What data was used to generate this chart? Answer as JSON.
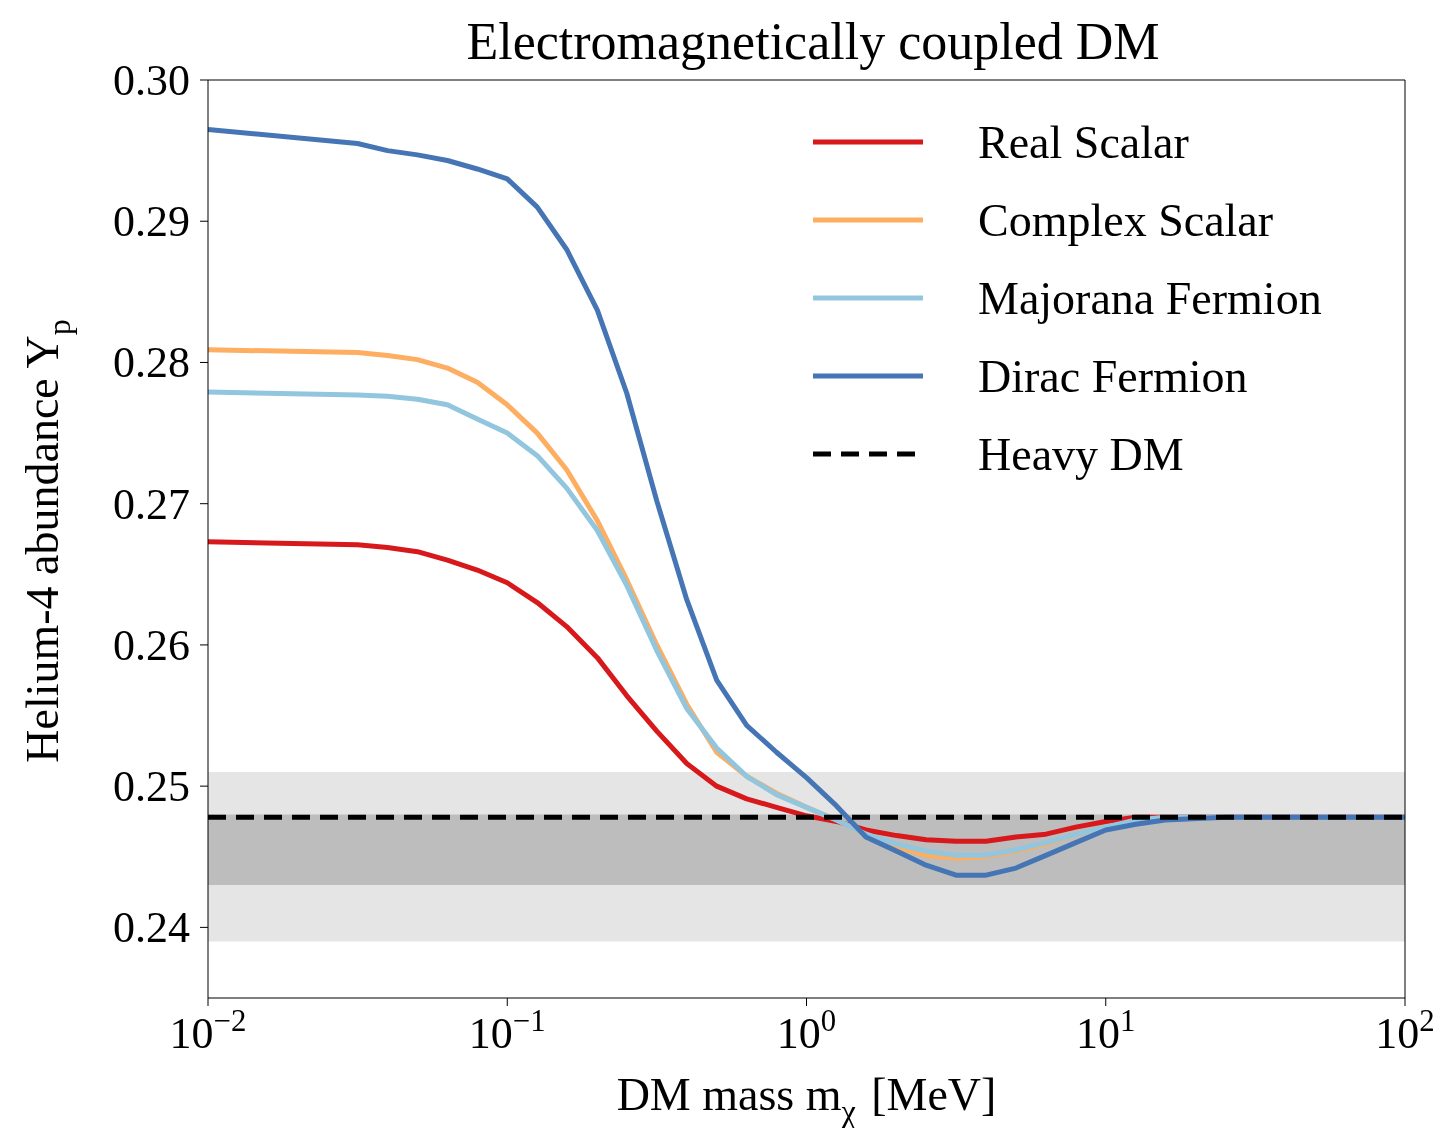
{
  "chart_data": {
    "type": "line",
    "title": "Electromagnetically coupled DM",
    "xlabel": "DM mass m$_{χ}$ [MeV]",
    "ylabel": "Helium-4 abundance Y$_{p}$",
    "log": "x",
    "xlim": [
      0.01,
      100
    ],
    "xticks": [
      {
        "value": 0.01,
        "label": "10$^{−2}$"
      },
      {
        "value": 0.1,
        "label": "10$^{−1}$"
      },
      {
        "value": 1,
        "label": "10$^{0}$"
      },
      {
        "value": 10,
        "label": "10$^{1}$"
      },
      {
        "value": 100,
        "label": "10$^{2}$"
      }
    ],
    "ylim": [
      0.235,
      0.3
    ],
    "yticks": [
      0.24,
      0.25,
      0.26,
      0.27,
      0.28,
      0.29,
      {
        "value": 0.3,
        "label": "0.30"
      }
    ],
    "legend": "top right",
    "line_style": "solid",
    "bands": [
      {
        "axis": "y",
        "from": 0.239,
        "to": 0.251,
        "color": "#e5e5e5"
      },
      {
        "axis": "y",
        "from": 0.243,
        "to": 0.248,
        "color": "#bdbdbd"
      }
    ],
    "x": [
      0.01,
      0.0316,
      0.0398,
      0.0501,
      0.0631,
      0.0794,
      0.1,
      0.126,
      0.158,
      0.2,
      0.251,
      0.316,
      0.398,
      0.501,
      0.631,
      0.794,
      1,
      1.26,
      1.58,
      2,
      2.51,
      3.16,
      3.98,
      5.01,
      6.31,
      7.94,
      10,
      12.6,
      15.8,
      25.1,
      100
    ],
    "series": [
      {
        "name": "Real Scalar",
        "color": "#d7191c",
        "values": [
          0.2673,
          0.2671,
          0.2669,
          0.2666,
          0.266,
          0.2653,
          0.2644,
          0.263,
          0.2613,
          0.2591,
          0.2564,
          0.2539,
          0.2516,
          0.25,
          0.2491,
          0.2485,
          0.2479,
          0.2475,
          0.2469,
          0.2465,
          0.2462,
          0.2461,
          0.2461,
          0.2464,
          0.2466,
          0.2471,
          0.2475,
          0.2478,
          0.2478,
          0.2478,
          0.2478
        ]
      },
      {
        "name": "Complex Scalar",
        "color": "#fdae61",
        "values": [
          0.2809,
          0.2807,
          0.2805,
          0.2802,
          0.2796,
          0.2786,
          0.277,
          0.275,
          0.2724,
          0.2688,
          0.2646,
          0.26,
          0.2558,
          0.2524,
          0.2507,
          0.2495,
          0.2485,
          0.2476,
          0.2466,
          0.2457,
          0.2451,
          0.2449,
          0.245,
          0.2454,
          0.2459,
          0.2466,
          0.2471,
          null,
          null,
          null,
          null
        ]
      },
      {
        "name": "Majorana Fermion",
        "color": "#92c5de",
        "values": [
          0.2779,
          0.2777,
          0.2776,
          0.2774,
          0.277,
          0.276,
          0.275,
          0.2734,
          0.2711,
          0.2681,
          0.2642,
          0.2596,
          0.2555,
          0.2527,
          0.2507,
          0.2494,
          0.2485,
          0.2476,
          0.2466,
          0.2459,
          0.2454,
          0.2451,
          0.2451,
          0.2455,
          0.246,
          0.2466,
          0.2471,
          0.2476,
          0.2478,
          0.2478,
          0.2478
        ]
      },
      {
        "name": "Dirac Fermion",
        "color": "#4575b4",
        "values": [
          0.2965,
          0.2955,
          0.295,
          0.2947,
          0.2943,
          0.2937,
          0.293,
          0.291,
          0.288,
          0.2837,
          0.2778,
          0.2702,
          0.2632,
          0.2575,
          0.2543,
          0.2524,
          0.2506,
          0.2486,
          0.2464,
          0.2454,
          0.2444,
          0.2437,
          0.2437,
          0.2442,
          0.2451,
          0.246,
          0.2469,
          0.2473,
          0.2476,
          0.2478,
          0.2478
        ]
      },
      {
        "name": "Heavy DM",
        "color": "#000000",
        "line_style": "dashed",
        "x": [
          0.01,
          100
        ],
        "values": [
          0.2478,
          0.2478
        ]
      }
    ]
  }
}
